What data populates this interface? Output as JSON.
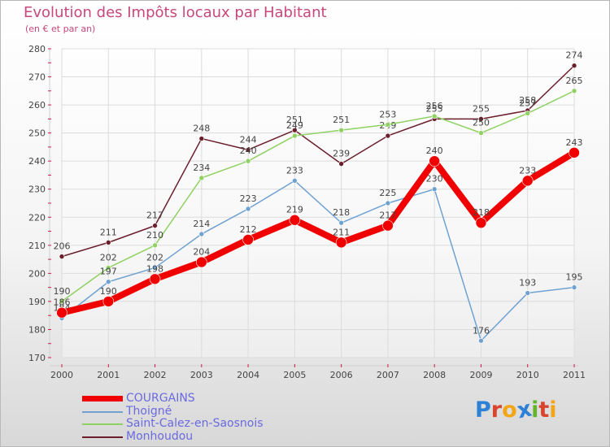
{
  "chart_data": {
    "type": "line",
    "title": "Evolution des Impôts locaux par Habitant",
    "subtitle": "(en € et par an)",
    "xlabel": "",
    "ylabel": "",
    "x": [
      "2000",
      "2001",
      "2002",
      "2003",
      "2004",
      "2005",
      "2006",
      "2007",
      "2008",
      "2009",
      "2010",
      "2011"
    ],
    "ylim": [
      170,
      280
    ],
    "yticks": [
      170,
      180,
      190,
      200,
      210,
      220,
      230,
      240,
      250,
      260,
      270,
      280
    ],
    "grid": true,
    "legend_position": "bottom-left",
    "series": [
      {
        "name": "Monhoudou",
        "color": "#6b1e2c",
        "values": [
          206,
          211,
          217,
          248,
          244,
          251,
          239,
          249,
          255,
          255,
          258,
          274
        ]
      },
      {
        "name": "Saint-Calez-en-Saosnois",
        "color": "#8fd163",
        "values": [
          190,
          202,
          210,
          234,
          240,
          249,
          251,
          253,
          256,
          250,
          257,
          265
        ]
      },
      {
        "name": "Thoigné",
        "color": "#6fa2d2",
        "values": [
          184,
          197,
          202,
          214,
          223,
          233,
          218,
          225,
          230,
          176,
          193,
          195
        ]
      },
      {
        "name": "COURGAINS",
        "color": "#f00000",
        "values": [
          186,
          190,
          198,
          204,
          212,
          219,
          211,
          217,
          240,
          218,
          233,
          243
        ]
      }
    ]
  },
  "legend": [
    {
      "label": "COURGAINS",
      "color": "#f00000"
    },
    {
      "label": "Thoigné",
      "color": "#6fa2d2"
    },
    {
      "label": "Saint-Calez-en-Saosnois",
      "color": "#8fd163"
    },
    {
      "label": "Monhoudou",
      "color": "#6b1e2c"
    }
  ],
  "logo": {
    "letters": [
      "P",
      "r",
      "o",
      "x",
      "i",
      "t",
      "i"
    ],
    "colors": [
      "#2e7fd6",
      "#d8442c",
      "#f2a516",
      "#2e7fd6",
      "#64b52c",
      "#d8442c",
      "#f2a516"
    ]
  }
}
